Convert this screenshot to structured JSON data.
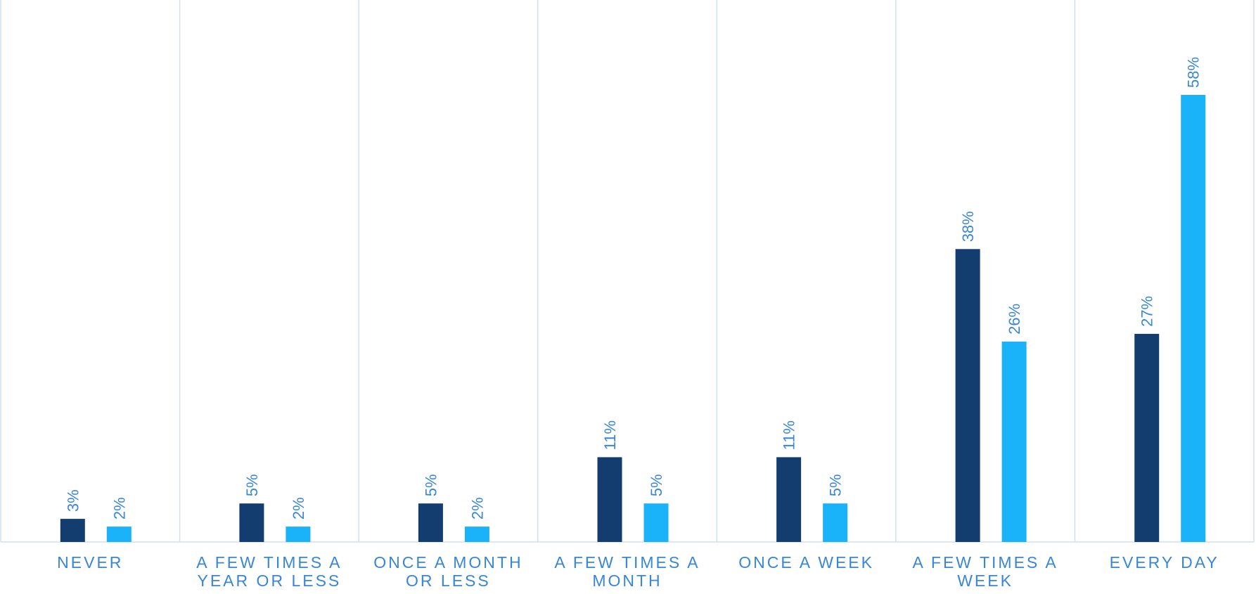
{
  "chart_data": {
    "type": "bar",
    "categories": [
      [
        "NEVER"
      ],
      [
        "A FEW TIMES A",
        "YEAR OR LESS"
      ],
      [
        "ONCE A MONTH",
        "OR LESS"
      ],
      [
        "A FEW TIMES A",
        "MONTH"
      ],
      [
        "ONCE A WEEK"
      ],
      [
        "A FEW TIMES A",
        "WEEK"
      ],
      [
        "EVERY DAY"
      ]
    ],
    "series": [
      {
        "color": "#143d6f",
        "values": [
          3,
          5,
          5,
          11,
          11,
          38,
          27
        ],
        "labels": [
          "3%",
          "5%",
          "5%",
          "11%",
          "11%",
          "38%",
          "27%"
        ]
      },
      {
        "color": "#1ab3fa",
        "values": [
          2,
          2,
          2,
          5,
          5,
          26,
          58
        ],
        "labels": [
          "2%",
          "2%",
          "2%",
          "5%",
          "5%",
          "26%",
          "58%"
        ]
      }
    ],
    "ylim": [
      0,
      65
    ],
    "grid": "vertical separators between categories",
    "label_color": "#3a86d6",
    "grid_color": "#cfe0f2"
  }
}
